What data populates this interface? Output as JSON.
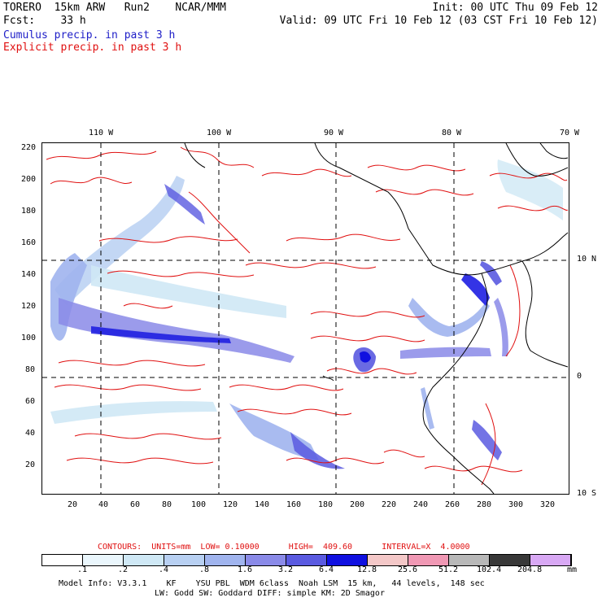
{
  "header": {
    "line1_left": "TORERO  15km ARW   Run2    NCAR/MMM",
    "line1_right": "Init: 00 UTC Thu 09 Feb 12",
    "line2_left": "Fcst:    33 h",
    "line2_right": "Valid: 09 UTC Fri 10 Feb 12 (03 CST Fri 10 Feb 12)",
    "legend_cumulus": "Cumulus precip. in past 3 h",
    "legend_explicit": "Explicit precip. in past 3 h"
  },
  "colors": {
    "cumulus": "#2020c8",
    "explicit": "#e01010",
    "grid": "#000000"
  },
  "axes": {
    "top_lon_labels": [
      "110 W",
      "100 W",
      "90 W",
      "80 W",
      "70 W"
    ],
    "right_lat_labels": [
      "10 N",
      "0",
      "10 S"
    ],
    "left_y_ticks": [
      "220",
      "200",
      "180",
      "160",
      "140",
      "120",
      "100",
      "80",
      "60",
      "40",
      "20"
    ],
    "bottom_x_ticks": [
      "20",
      "40",
      "60",
      "80",
      "100",
      "120",
      "140",
      "160",
      "180",
      "200",
      "220",
      "240",
      "260",
      "280",
      "300",
      "320"
    ]
  },
  "contour_info": {
    "label": "CONTOURS:  UNITS=mm  LOW= 0.10000      HIGH=  409.60      INTERVAL=X  4.0000"
  },
  "colorbar": {
    "labels": [
      ".1",
      ".2",
      ".4",
      ".8",
      "1.6",
      "3.2",
      "6.4",
      "12.8",
      "25.6",
      "51.2",
      "102.4",
      "204.8"
    ],
    "colors": [
      "#ffffff",
      "#eaf6fc",
      "#cfe8f5",
      "#b8d0f2",
      "#a0b4ee",
      "#8a8ae8",
      "#5a5ae0",
      "#1010e0",
      "#f4c8c8",
      "#f098b4",
      "#b8b8b8",
      "#383838",
      "#d8a8f4"
    ],
    "unit": "mm"
  },
  "footer": {
    "line1": "Model Info: V3.3.1    KF    YSU PBL  WDM 6class  Noah LSM  15 km,   44 levels,  148 sec",
    "line2": "LW: Godd SW: Goddard DIFF: simple KM: 2D Smagor"
  }
}
